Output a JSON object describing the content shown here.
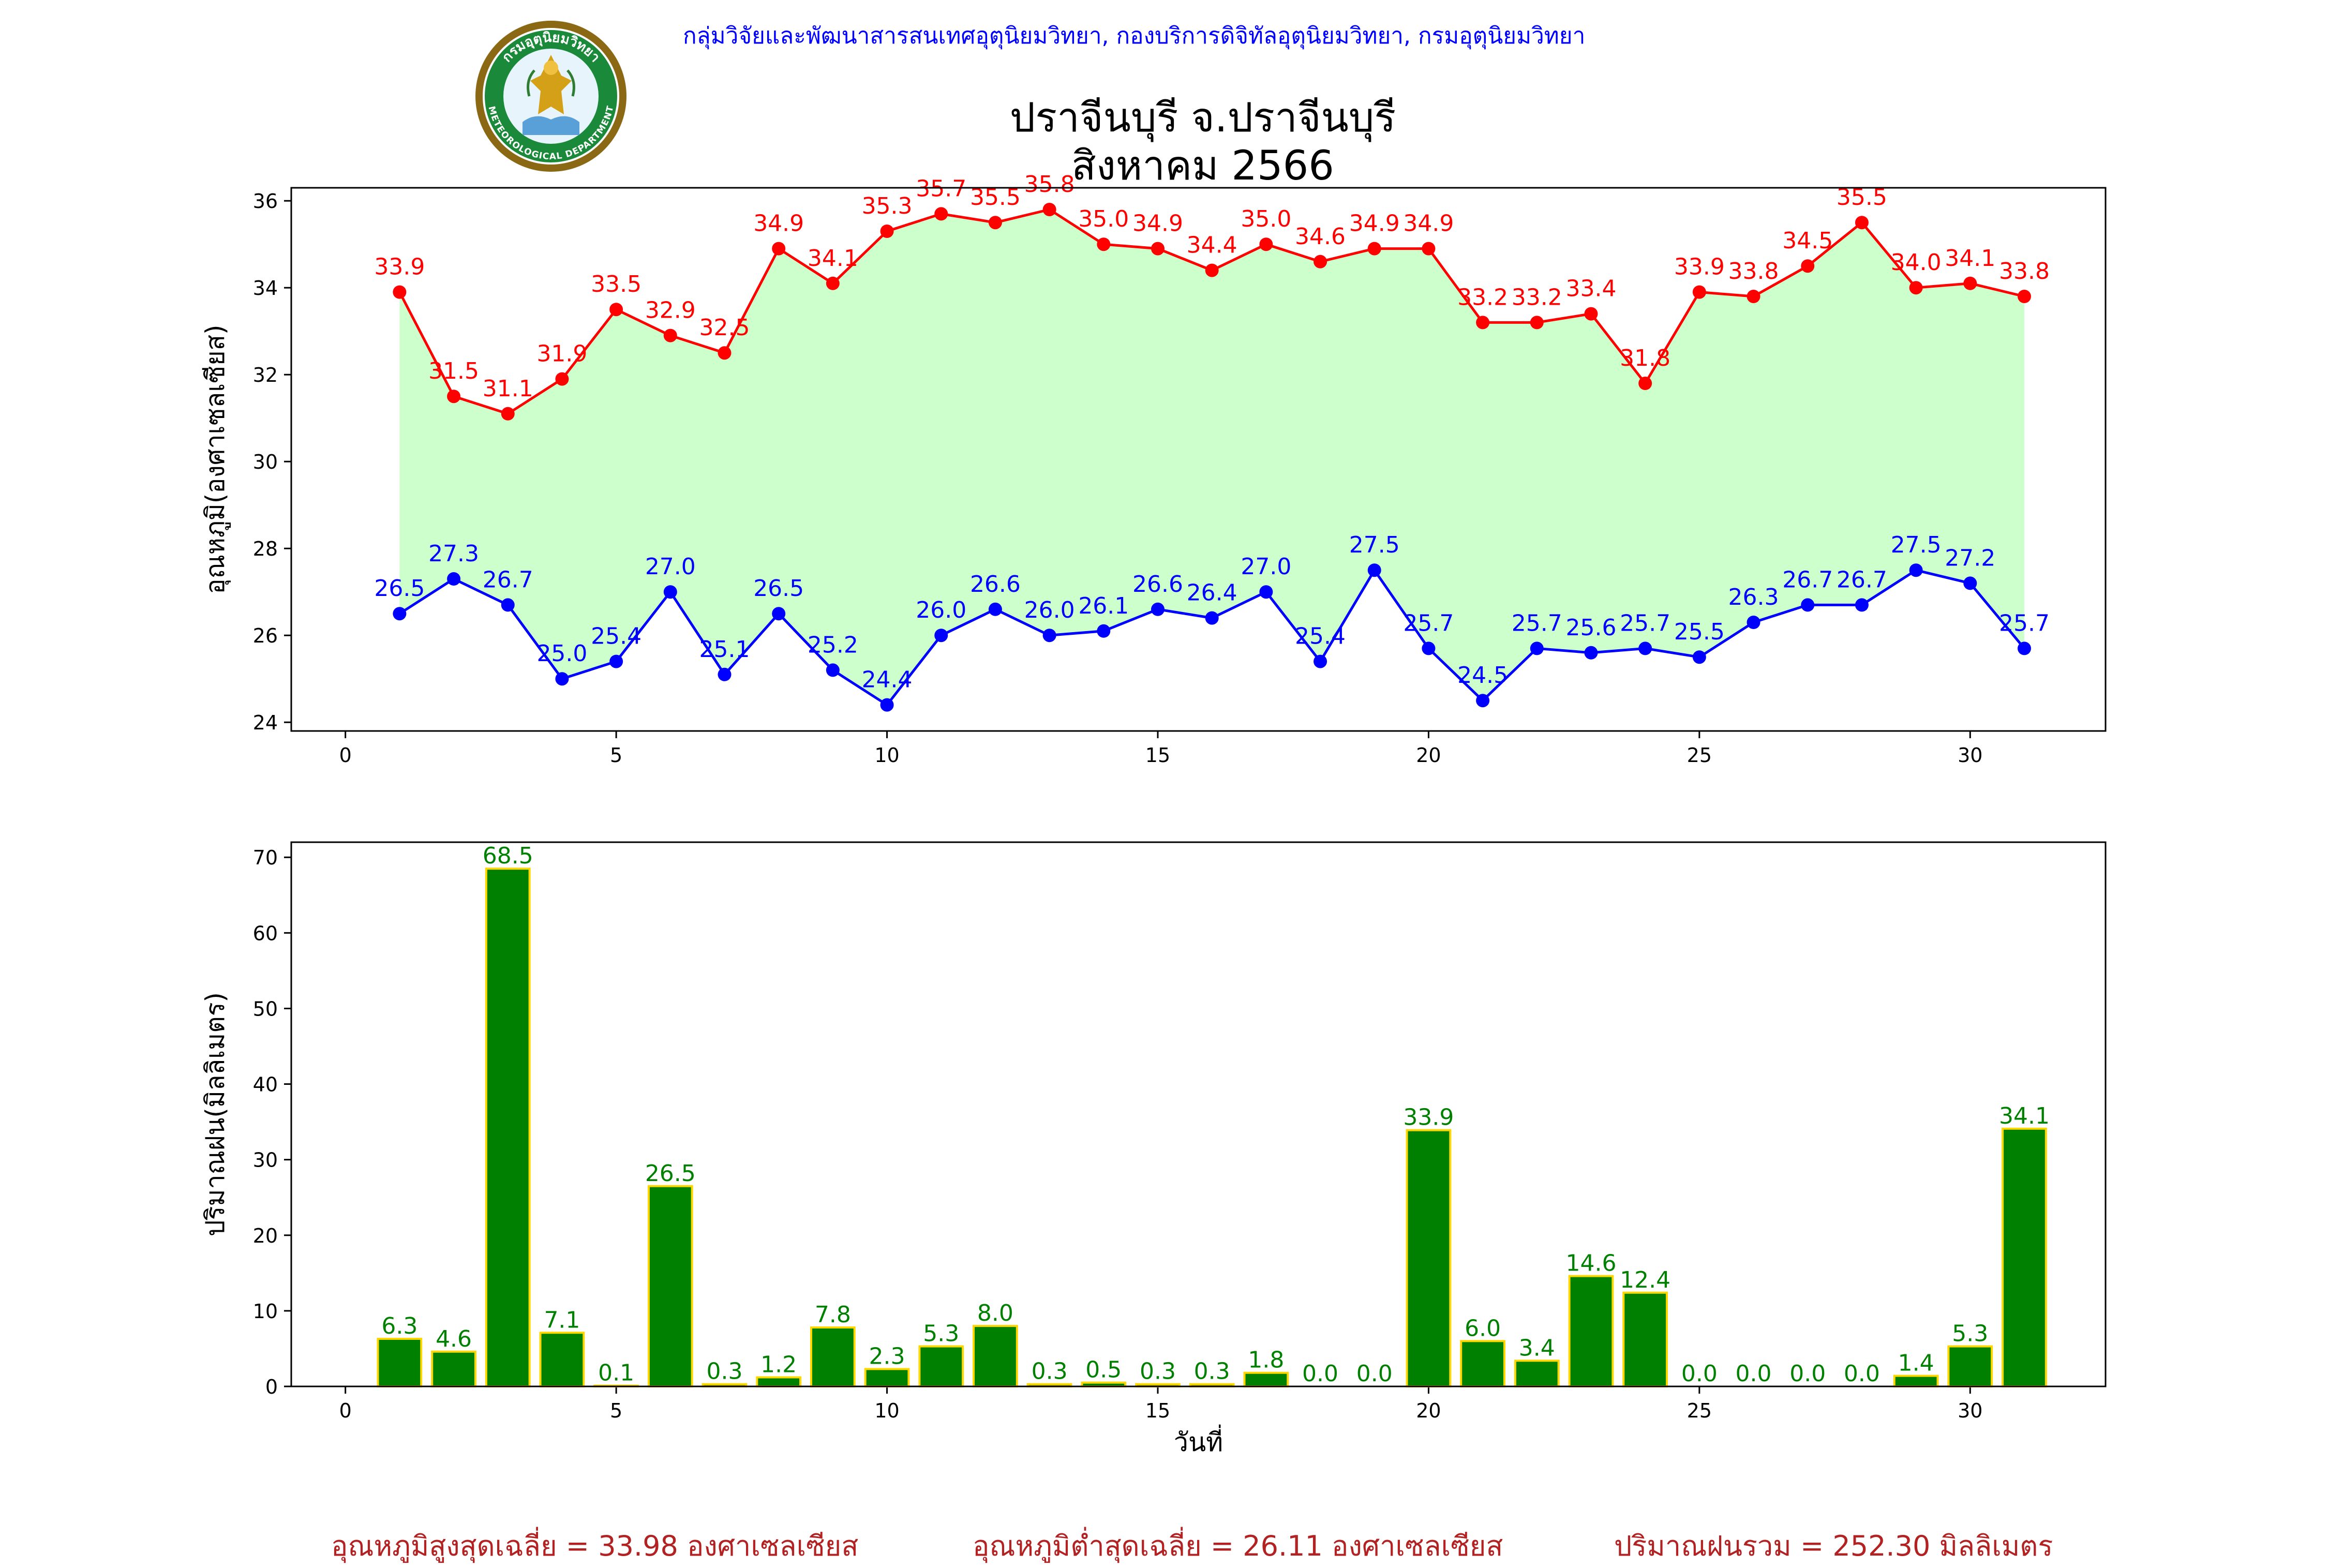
{
  "header": {
    "credit": "กลุ่มวิจัยและพัฒนาสารสนเทศอุตุนิยมวิทยา, กองบริการดิจิทัลอุตุนิยมวิทยา, กรมอุตุนิยมวิทยา",
    "logo_text_top": "กรมอุตุนิยมวิทยา",
    "logo_text_bottom": "METEOROLOGICAL DEPARTMENT",
    "title_line1": "ปราจีนบุรี จ.ปราจีนบุรี",
    "title_line2": "สิงหาคม 2566"
  },
  "colors": {
    "max_line": "#ff0000",
    "min_line": "#0000ff",
    "fill": "#ccffcc",
    "bar_fill": "#008000",
    "bar_edge": "#ffd700",
    "bar_label": "#008000",
    "footer_text": "#b22222"
  },
  "chart_data": [
    {
      "type": "line",
      "title": "",
      "ylabel": "อุณหภูมิ(องศาเซลเซียส)",
      "xlabel": "",
      "xlim": [
        -1,
        32.5
      ],
      "ylim": [
        23.8,
        36.3
      ],
      "xticks": [
        0,
        5,
        10,
        15,
        20,
        25,
        30
      ],
      "yticks": [
        24,
        26,
        28,
        30,
        32,
        34,
        36
      ],
      "grid": false,
      "fill_between": true,
      "x": [
        1,
        2,
        3,
        4,
        5,
        6,
        7,
        8,
        9,
        10,
        11,
        12,
        13,
        14,
        15,
        16,
        17,
        18,
        19,
        20,
        21,
        22,
        23,
        24,
        25,
        26,
        27,
        28,
        29,
        30,
        31
      ],
      "series": [
        {
          "key": "max",
          "values": [
            33.9,
            31.5,
            31.1,
            31.9,
            33.5,
            32.9,
            32.5,
            34.9,
            34.1,
            35.3,
            35.7,
            35.5,
            35.8,
            35.0,
            34.9,
            34.4,
            35.0,
            34.6,
            34.9,
            34.9,
            33.2,
            33.2,
            33.4,
            31.8,
            33.9,
            33.8,
            34.5,
            35.5,
            34.0,
            34.1,
            33.8
          ]
        },
        {
          "key": "min",
          "values": [
            26.5,
            27.3,
            26.7,
            25.0,
            25.4,
            27.0,
            25.1,
            26.5,
            25.2,
            24.4,
            26.0,
            26.6,
            26.0,
            26.1,
            26.6,
            26.4,
            27.0,
            25.4,
            27.5,
            25.7,
            24.5,
            25.7,
            25.6,
            25.7,
            25.5,
            26.3,
            26.7,
            26.7,
            27.5,
            27.2,
            25.7
          ]
        }
      ]
    },
    {
      "type": "bar",
      "title": "",
      "ylabel": "ปริมาณฝน(มิลลิเมตร)",
      "xlabel": "วันที่",
      "xlim": [
        -1,
        32.5
      ],
      "ylim": [
        0,
        72
      ],
      "xticks": [
        0,
        5,
        10,
        15,
        20,
        25,
        30
      ],
      "yticks": [
        0,
        10,
        20,
        30,
        40,
        50,
        60,
        70
      ],
      "grid": false,
      "x": [
        1,
        2,
        3,
        4,
        5,
        6,
        7,
        8,
        9,
        10,
        11,
        12,
        13,
        14,
        15,
        16,
        17,
        18,
        19,
        20,
        21,
        22,
        23,
        24,
        25,
        26,
        27,
        28,
        29,
        30,
        31
      ],
      "values": [
        6.3,
        4.6,
        68.5,
        7.1,
        0.1,
        26.5,
        0.3,
        1.2,
        7.8,
        2.3,
        5.3,
        8.0,
        0.3,
        0.5,
        0.3,
        0.3,
        1.8,
        0.0,
        0.0,
        33.9,
        6.0,
        3.4,
        14.6,
        12.4,
        0.0,
        0.0,
        0.0,
        0.0,
        1.4,
        5.3,
        34.1
      ]
    }
  ],
  "footer": {
    "avg_max": "อุณหภูมิสูงสุดเฉลี่ย = 33.98 องศาเซลเซียส",
    "avg_min": "อุณหภูมิต่ำสุดเฉลี่ย = 26.11 องศาเซลเซียส",
    "total_rain": "ปริมาณฝนรวม = 252.30 มิลลิเมตร"
  }
}
